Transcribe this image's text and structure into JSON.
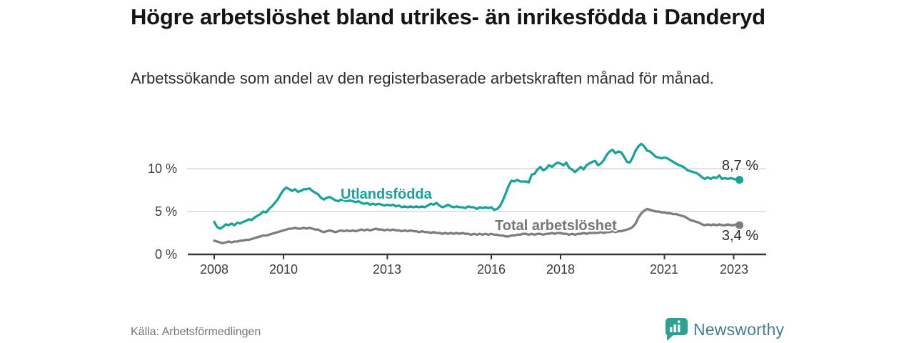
{
  "header": {
    "title": "Högre arbetslöshet bland utrikes- än inrikesfödda i Danderyd",
    "subtitle": "Arbetssökande som andel av den registerbaserade arbetskraften månad för månad."
  },
  "chart_data": {
    "type": "line",
    "unit": "%",
    "x_start_year": 2008,
    "x_step_months": 1,
    "x_end": "2023-03",
    "x_tick_years": [
      2008,
      2010,
      2013,
      2016,
      2018,
      2021,
      2023
    ],
    "x_tick_labels": [
      "2008",
      "2010",
      "2013",
      "2016",
      "2018",
      "2021",
      "2023"
    ],
    "y_ticks": [
      0,
      5,
      10
    ],
    "y_tick_labels": [
      "0 %",
      "5 %",
      "10 %"
    ],
    "ylim": [
      0,
      13.5
    ],
    "grid_values": [
      5,
      10
    ],
    "legend_position": "inline-labels",
    "series": [
      {
        "name": "Utlandsfödda",
        "color": "#17a399",
        "end_label": "8,7 %",
        "end_value": 8.7,
        "values": [
          3.8,
          3.2,
          3.0,
          3.2,
          3.5,
          3.4,
          3.6,
          3.4,
          3.7,
          3.6,
          3.8,
          3.9,
          4.1,
          4.0,
          4.3,
          4.5,
          4.7,
          5.0,
          4.9,
          5.3,
          5.6,
          6.0,
          6.4,
          7.0,
          7.5,
          7.8,
          7.6,
          7.4,
          7.6,
          7.3,
          7.4,
          7.6,
          7.6,
          7.7,
          7.4,
          7.2,
          7.0,
          6.6,
          6.4,
          6.6,
          6.7,
          6.5,
          6.3,
          6.2,
          6.4,
          6.3,
          6.2,
          6.3,
          6.2,
          6.1,
          6.2,
          6.0,
          5.9,
          6.0,
          5.8,
          5.9,
          5.8,
          5.9,
          5.8,
          5.7,
          5.8,
          5.7,
          5.8,
          5.6,
          5.7,
          5.5,
          5.6,
          5.5,
          5.6,
          5.5,
          5.6,
          5.5,
          5.6,
          5.5,
          5.7,
          5.9,
          5.8,
          6.0,
          5.7,
          5.5,
          5.6,
          5.8,
          5.6,
          5.5,
          5.6,
          5.5,
          5.5,
          5.4,
          5.6,
          5.5,
          5.5,
          5.3,
          5.5,
          5.4,
          5.5,
          5.4,
          5.5,
          5.2,
          5.3,
          5.6,
          6.3,
          7.1,
          8.0,
          8.6,
          8.5,
          8.7,
          8.5,
          8.5,
          8.5,
          8.4,
          9.3,
          9.4,
          9.9,
          10.2,
          9.8,
          10.0,
          10.4,
          10.2,
          10.5,
          10.7,
          10.6,
          10.4,
          10.7,
          10.1,
          9.9,
          9.6,
          9.9,
          10.2,
          9.9,
          10.4,
          10.6,
          10.8,
          10.9,
          10.4,
          10.6,
          11.0,
          11.6,
          12.0,
          12.2,
          11.8,
          12.0,
          11.9,
          11.4,
          10.8,
          10.7,
          11.3,
          12.1,
          12.6,
          12.9,
          12.6,
          12.1,
          12.0,
          11.7,
          11.4,
          11.3,
          11.2,
          11.3,
          11.2,
          11.0,
          10.8,
          10.6,
          10.4,
          10.3,
          10.1,
          9.8,
          9.7,
          9.6,
          9.5,
          9.3,
          9.0,
          8.8,
          9.0,
          8.8,
          9.0,
          8.9,
          9.2,
          8.8,
          8.9,
          8.8,
          8.9,
          8.8,
          8.7,
          8.7
        ]
      },
      {
        "name": "Total arbetslöshet",
        "color": "#7d7d7d",
        "end_label": "3,4 %",
        "end_value": 3.4,
        "values": [
          1.6,
          1.5,
          1.4,
          1.3,
          1.4,
          1.5,
          1.4,
          1.5,
          1.5,
          1.6,
          1.6,
          1.7,
          1.7,
          1.8,
          1.9,
          2.0,
          2.1,
          2.2,
          2.2,
          2.3,
          2.4,
          2.5,
          2.6,
          2.7,
          2.8,
          2.9,
          3.0,
          3.0,
          3.1,
          3.0,
          3.0,
          3.1,
          3.0,
          3.1,
          3.0,
          2.9,
          2.9,
          2.7,
          2.6,
          2.7,
          2.8,
          2.7,
          2.6,
          2.7,
          2.8,
          2.7,
          2.8,
          2.7,
          2.8,
          2.7,
          2.8,
          2.9,
          2.8,
          2.9,
          2.8,
          2.9,
          3.0,
          2.9,
          2.9,
          2.8,
          2.9,
          2.8,
          2.9,
          2.8,
          2.8,
          2.7,
          2.8,
          2.7,
          2.8,
          2.7,
          2.7,
          2.6,
          2.7,
          2.6,
          2.6,
          2.5,
          2.6,
          2.5,
          2.5,
          2.4,
          2.5,
          2.4,
          2.5,
          2.4,
          2.5,
          2.4,
          2.5,
          2.4,
          2.4,
          2.3,
          2.4,
          2.3,
          2.4,
          2.3,
          2.4,
          2.3,
          2.4,
          2.3,
          2.3,
          2.2,
          2.2,
          2.1,
          2.1,
          2.2,
          2.2,
          2.3,
          2.3,
          2.4,
          2.4,
          2.3,
          2.4,
          2.3,
          2.4,
          2.4,
          2.3,
          2.4,
          2.4,
          2.5,
          2.4,
          2.5,
          2.5,
          2.4,
          2.4,
          2.3,
          2.4,
          2.3,
          2.4,
          2.4,
          2.5,
          2.4,
          2.5,
          2.5,
          2.5,
          2.5,
          2.6,
          2.5,
          2.6,
          2.6,
          2.7,
          2.6,
          2.7,
          2.7,
          2.8,
          2.9,
          3.0,
          3.2,
          3.6,
          4.3,
          4.8,
          5.1,
          5.3,
          5.2,
          5.1,
          5.0,
          5.0,
          4.9,
          4.9,
          4.8,
          4.8,
          4.7,
          4.7,
          4.6,
          4.5,
          4.4,
          4.2,
          4.0,
          3.9,
          3.8,
          3.7,
          3.5,
          3.4,
          3.5,
          3.4,
          3.5,
          3.4,
          3.5,
          3.4,
          3.4,
          3.5,
          3.4,
          3.4,
          3.5,
          3.4
        ]
      }
    ]
  },
  "style": {
    "axis_color": "#383838",
    "grid_color": "#d9d9d9",
    "accent": "#17a399"
  },
  "footer": {
    "source": "Källa: Arbetsförmedlingen",
    "logo_text": "Newsworthy"
  }
}
